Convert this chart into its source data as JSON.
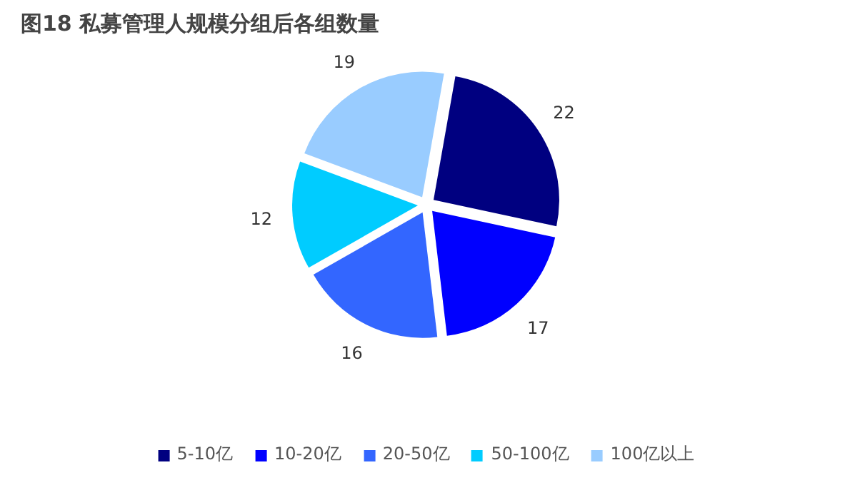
{
  "chart_data": {
    "type": "pie",
    "title": "图18 私募管理人规模分组后各组数量",
    "categories": [
      "5-10亿",
      "10-20亿",
      "20-50亿",
      "50-100亿",
      "100亿以上"
    ],
    "values": [
      22,
      17,
      16,
      12,
      19
    ],
    "colors": [
      "#000080",
      "#0000ff",
      "#3366ff",
      "#00ccff",
      "#99ccff"
    ],
    "data_labels": true,
    "legend": "bottom"
  }
}
